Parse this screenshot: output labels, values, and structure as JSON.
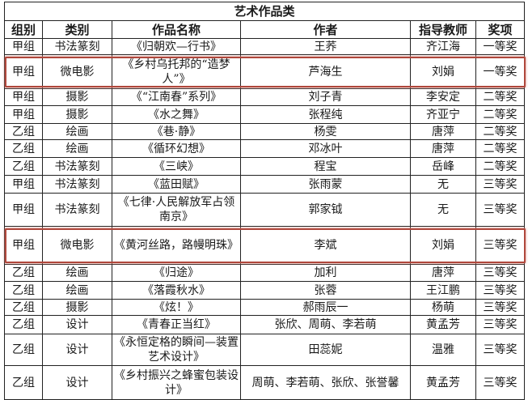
{
  "table": {
    "title": "艺术作品类",
    "headers": [
      "组别",
      "类别",
      "作品名称",
      "作者",
      "指导教师",
      "奖项"
    ],
    "highlight_color": "#b0473c",
    "rows": [
      {
        "cells": [
          "甲组",
          "书法篆刻",
          "《归朝欢—行书》",
          "王荞",
          "齐江海",
          "一等奖"
        ],
        "highlighted": false
      },
      {
        "cells": [
          "甲组",
          "微电影",
          "《乡村乌托邦的“造梦人”》",
          "芦海生",
          "刘娟",
          "一等奖"
        ],
        "highlighted": true
      },
      {
        "cells": [
          "甲组",
          "摄影",
          "《“江南春”系列》",
          "刘子青",
          "李安定",
          "二等奖"
        ],
        "highlighted": false
      },
      {
        "cells": [
          "甲组",
          "摄影",
          "《水之舞》",
          "张程纯",
          "齐亚宁",
          "二等奖"
        ],
        "highlighted": false
      },
      {
        "cells": [
          "乙组",
          "绘画",
          "《巷·静》",
          "杨雯",
          "唐萍",
          "二等奖"
        ],
        "highlighted": false
      },
      {
        "cells": [
          "乙组",
          "绘画",
          "《循环幻想》",
          "邓冰叶",
          "唐萍",
          "二等奖"
        ],
        "highlighted": false
      },
      {
        "cells": [
          "乙组",
          "书法篆刻",
          "《三峡》",
          "程宝",
          "岳峰",
          "二等奖"
        ],
        "highlighted": false
      },
      {
        "cells": [
          "甲组",
          "书法篆刻",
          "《蓝田赋》",
          "张雨蒙",
          "无",
          "三等奖"
        ],
        "highlighted": false
      },
      {
        "cells": [
          "甲组",
          "书法篆刻",
          "《七律·人民解放军占领南京》",
          "郭家钺",
          "无",
          "三等奖"
        ],
        "highlighted": false
      },
      {
        "cells": [
          "甲组",
          "微电影",
          "《黄河丝路，路幔明珠》",
          "李斌",
          "刘娟",
          "三等奖"
        ],
        "highlighted": true
      },
      {
        "cells": [
          "乙组",
          "绘画",
          "《归途》",
          "加利",
          "唐萍",
          "三等奖"
        ],
        "highlighted": false
      },
      {
        "cells": [
          "乙组",
          "绘画",
          "《落霞秋水》",
          "张蓉",
          "王江鹏",
          "三等奖"
        ],
        "highlighted": false
      },
      {
        "cells": [
          "乙组",
          "摄影",
          "《炫！》",
          "郝雨辰一",
          "杨萌",
          "三等奖"
        ],
        "highlighted": false
      },
      {
        "cells": [
          "乙组",
          "设计",
          "《青春正当红》",
          "张欣、周萌、李若萌",
          "黄孟芳",
          "三等奖"
        ],
        "highlighted": false
      },
      {
        "cells": [
          "乙组",
          "设计",
          "《永恒定格的瞬间—装置艺术设计》",
          "田蕊妮",
          "温雅",
          "三等奖"
        ],
        "highlighted": false
      },
      {
        "cells": [
          "乙组",
          "设计",
          "《乡村振兴之蜂蜜包装设计》",
          "周萌、李若萌、张欣、张誉馨",
          "黄孟芳",
          "三等奖"
        ],
        "highlighted": false
      }
    ]
  }
}
